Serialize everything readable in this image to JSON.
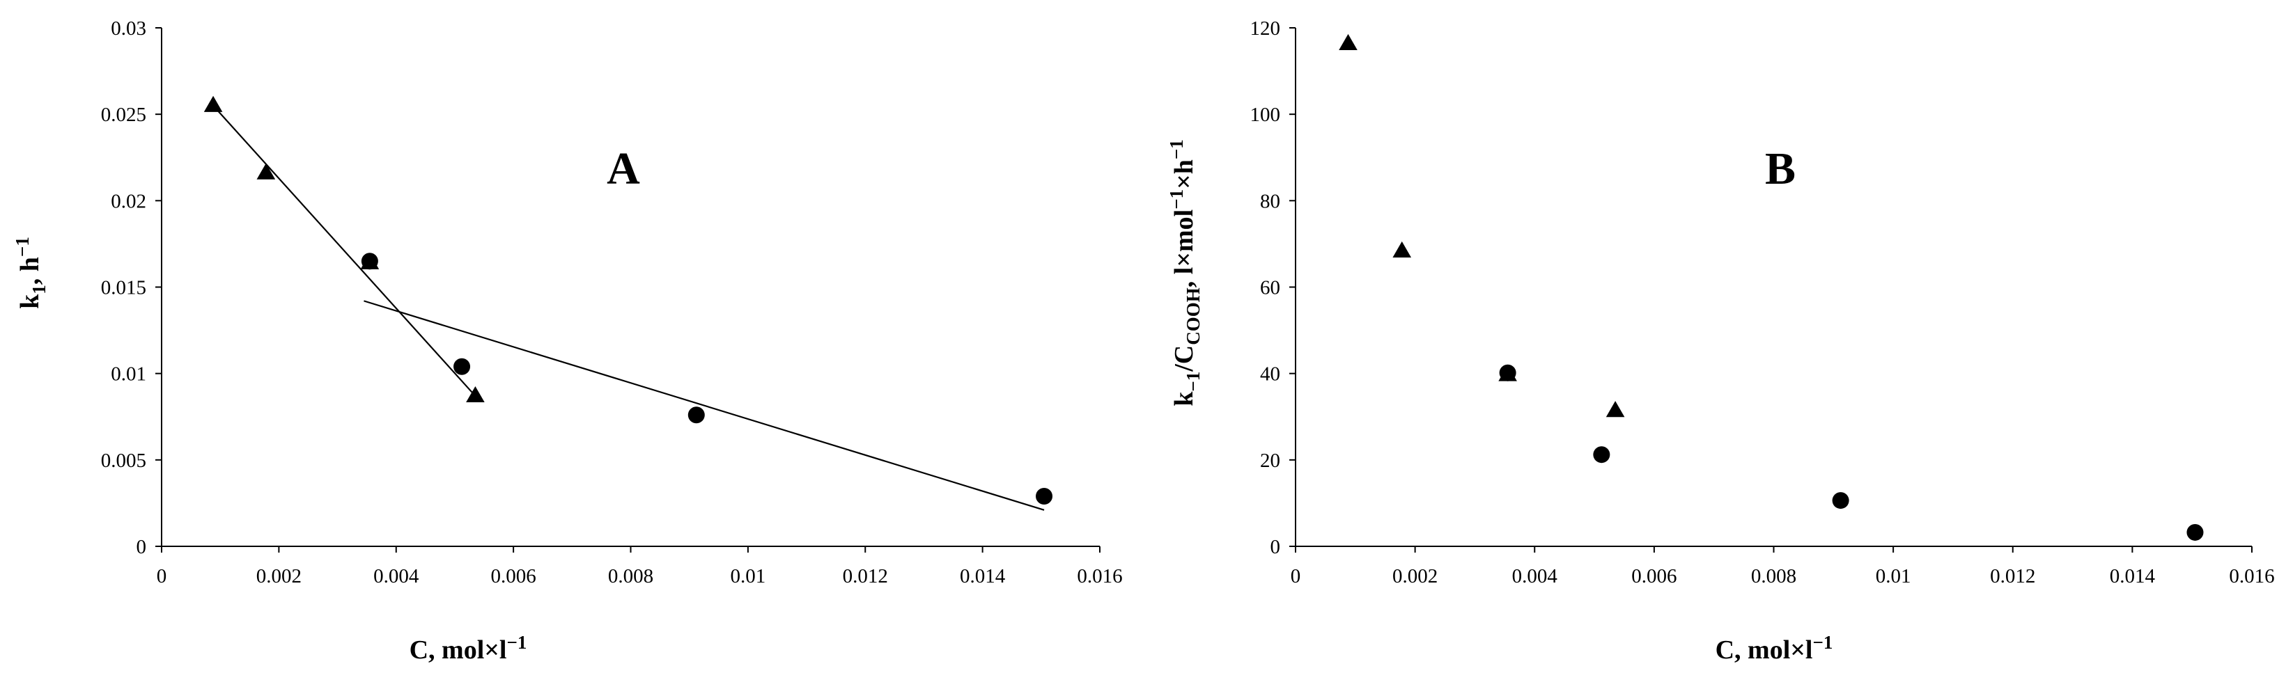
{
  "chart_data": [
    {
      "type": "scatter",
      "panel_label": "A",
      "xlabel": "C, mol×l",
      "xlabel_sup": "−1",
      "ylabel": "k",
      "ylabel_sub": "1",
      "ylabel_rest": ", h",
      "ylabel_sup": "−1",
      "xlim": [
        0,
        0.016
      ],
      "ylim": [
        0,
        0.03
      ],
      "xticks": [
        "0",
        "0.002",
        "0.004",
        "0.006",
        "0.008",
        "0.01",
        "0.012",
        "0.014",
        "0.016"
      ],
      "yticks": [
        "0",
        "0.005",
        "0.01",
        "0.015",
        "0.02",
        "0.025",
        "0.03"
      ],
      "grid": false,
      "series": [
        {
          "marker": "triangle",
          "x": [
            0.00088,
            0.00178,
            0.00355,
            0.00535
          ],
          "y": [
            0.0255,
            0.0216,
            0.0164,
            0.0087
          ]
        },
        {
          "marker": "circle",
          "x": [
            0.00355,
            0.00512,
            0.00912,
            0.01505
          ],
          "y": [
            0.0165,
            0.0104,
            0.0076,
            0.0029
          ]
        }
      ],
      "trendlines": [
        {
          "x": [
            0.00088,
            0.00535
          ],
          "y": [
            0.0255,
            0.0087
          ]
        },
        {
          "x": [
            0.00345,
            0.01505
          ],
          "y": [
            0.0142,
            0.0021
          ]
        }
      ]
    },
    {
      "type": "scatter",
      "panel_label": "B",
      "xlabel": "C, mol×l",
      "xlabel_sup": "−1",
      "ylabel": "k",
      "ylabel_sub": "−1",
      "ylabel_mid": "/C",
      "ylabel_sub2": "COOH",
      "ylabel_rest": ", l×mol",
      "ylabel_sup": "−1",
      "ylabel_rest2": "×h",
      "ylabel_sup2": "−1",
      "xlim": [
        0,
        0.016
      ],
      "ylim": [
        0,
        130
      ],
      "xticks": [
        "0",
        "0.002",
        "0.004",
        "0.006",
        "0.008",
        "0.01",
        "0.012",
        "0.014",
        "0.016"
      ],
      "yticks": [
        "0",
        "20",
        "40",
        "60",
        "80",
        "100",
        "120"
      ],
      "grid": false,
      "series": [
        {
          "marker": "triangle",
          "x": [
            0.00088,
            0.00178,
            0.00355,
            0.00535
          ],
          "y": [
            126,
            74,
            43,
            34
          ]
        },
        {
          "marker": "circle",
          "x": [
            0.00355,
            0.00512,
            0.00912,
            0.01505
          ],
          "y": [
            43.5,
            23,
            11.5,
            3.5
          ]
        }
      ]
    }
  ]
}
